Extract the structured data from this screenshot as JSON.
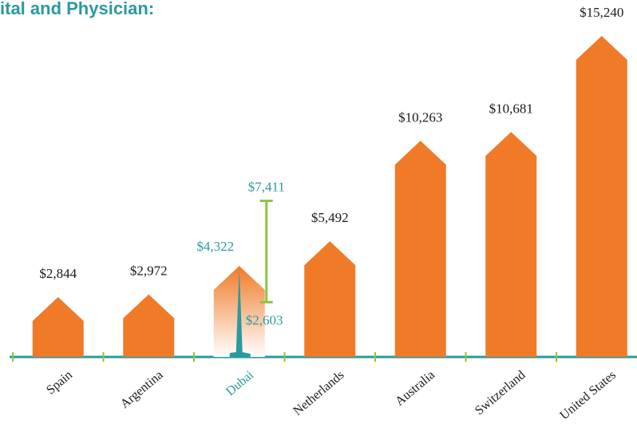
{
  "chart_data": {
    "type": "bar",
    "title": "ital and Physician:",
    "categories": [
      "Spain",
      "Argentina",
      "Dubai",
      "Netherlands",
      "Australia",
      "Switzerland",
      "United States"
    ],
    "values": [
      2844,
      2972,
      4322,
      5492,
      10263,
      10681,
      15240
    ],
    "value_labels": [
      "$2,844",
      "$2,972",
      "$4,322",
      "$5,492",
      "$10,263",
      "$10,681",
      "$15,240"
    ],
    "ranges": [
      null,
      null,
      {
        "low": 2603,
        "high": 7411,
        "low_label": "$2,603",
        "high_label": "$7,411"
      },
      null,
      null,
      null,
      null
    ],
    "color": "#f07a28",
    "highlight_color": "#2a9a9e",
    "range_color": "#8cc63f",
    "axis_color": "#2a9a9e"
  }
}
